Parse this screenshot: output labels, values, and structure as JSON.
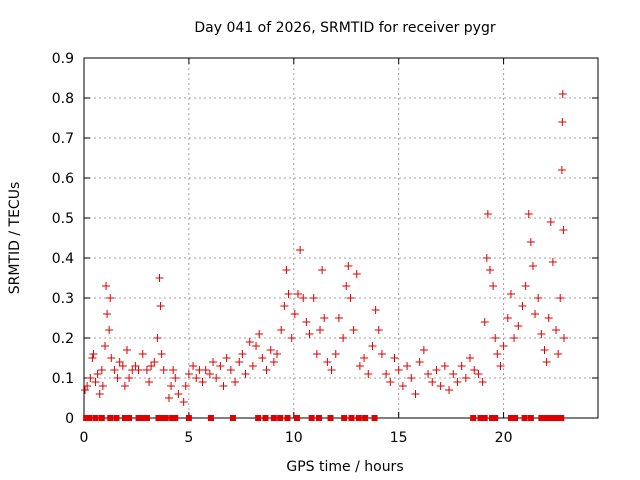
{
  "chart_data": {
    "type": "scatter",
    "title": "Day 041 of 2026, SRMTID for receiver pygr",
    "xlabel": "GPS time / hours",
    "ylabel": "SRMTID / TECUs",
    "xlim": [
      0,
      24.5
    ],
    "ylim": [
      0,
      0.9
    ],
    "xticks": [
      0,
      5,
      10,
      15,
      20
    ],
    "xtick_labels": [
      "0",
      "5",
      "10",
      "15",
      "20"
    ],
    "yticks": [
      0,
      0.1,
      0.2,
      0.3,
      0.4,
      0.5,
      0.6,
      0.7,
      0.8,
      0.9
    ],
    "ytick_labels": [
      "0",
      "0.1",
      "0.2",
      "0.3",
      "0.4",
      "0.5",
      "0.6",
      "0.7",
      "0.8",
      "0.9"
    ],
    "grid": true,
    "color": "#e00000",
    "marker": "plus",
    "series": [
      {
        "name": "SRMTID",
        "points": [
          [
            0.05,
            0.07
          ],
          [
            0.15,
            0.08
          ],
          [
            0.3,
            0.1
          ],
          [
            0.4,
            0.15
          ],
          [
            0.45,
            0.16
          ],
          [
            0.55,
            0.09
          ],
          [
            0.65,
            0.11
          ],
          [
            0.75,
            0.06
          ],
          [
            0.85,
            0.12
          ],
          [
            0.9,
            0.08
          ],
          [
            1.0,
            0.18
          ],
          [
            1.05,
            0.33
          ],
          [
            1.1,
            0.26
          ],
          [
            1.2,
            0.22
          ],
          [
            1.25,
            0.3
          ],
          [
            1.3,
            0.15
          ],
          [
            1.45,
            0.12
          ],
          [
            1.6,
            0.1
          ],
          [
            1.7,
            0.14
          ],
          [
            1.85,
            0.13
          ],
          [
            1.95,
            0.08
          ],
          [
            2.05,
            0.17
          ],
          [
            2.15,
            0.1
          ],
          [
            2.3,
            0.12
          ],
          [
            2.45,
            0.13
          ],
          [
            2.6,
            0.12
          ],
          [
            2.8,
            0.16
          ],
          [
            3.0,
            0.12
          ],
          [
            3.1,
            0.09
          ],
          [
            3.2,
            0.13
          ],
          [
            3.35,
            0.14
          ],
          [
            3.5,
            0.2
          ],
          [
            3.6,
            0.35
          ],
          [
            3.65,
            0.28
          ],
          [
            3.7,
            0.16
          ],
          [
            3.8,
            0.12
          ],
          [
            4.05,
            0.05
          ],
          [
            4.15,
            0.08
          ],
          [
            4.25,
            0.12
          ],
          [
            4.35,
            0.1
          ],
          [
            4.5,
            0.06
          ],
          [
            4.75,
            0.04
          ],
          [
            4.85,
            0.08
          ],
          [
            5.0,
            0.11
          ],
          [
            5.2,
            0.13
          ],
          [
            5.35,
            0.1
          ],
          [
            5.5,
            0.12
          ],
          [
            5.65,
            0.09
          ],
          [
            5.8,
            0.12
          ],
          [
            6.0,
            0.11
          ],
          [
            6.15,
            0.14
          ],
          [
            6.3,
            0.1
          ],
          [
            6.5,
            0.13
          ],
          [
            6.65,
            0.08
          ],
          [
            6.8,
            0.15
          ],
          [
            7.0,
            0.12
          ],
          [
            7.2,
            0.09
          ],
          [
            7.4,
            0.14
          ],
          [
            7.55,
            0.16
          ],
          [
            7.7,
            0.11
          ],
          [
            7.9,
            0.19
          ],
          [
            8.05,
            0.13
          ],
          [
            8.2,
            0.18
          ],
          [
            8.35,
            0.21
          ],
          [
            8.5,
            0.15
          ],
          [
            8.7,
            0.12
          ],
          [
            8.9,
            0.17
          ],
          [
            9.05,
            0.14
          ],
          [
            9.2,
            0.16
          ],
          [
            9.4,
            0.22
          ],
          [
            9.55,
            0.28
          ],
          [
            9.65,
            0.37
          ],
          [
            9.75,
            0.31
          ],
          [
            9.9,
            0.2
          ],
          [
            10.05,
            0.26
          ],
          [
            10.2,
            0.31
          ],
          [
            10.3,
            0.42
          ],
          [
            10.45,
            0.3
          ],
          [
            10.6,
            0.24
          ],
          [
            10.75,
            0.21
          ],
          [
            10.95,
            0.3
          ],
          [
            11.1,
            0.16
          ],
          [
            11.25,
            0.22
          ],
          [
            11.35,
            0.37
          ],
          [
            11.45,
            0.25
          ],
          [
            11.6,
            0.14
          ],
          [
            11.8,
            0.12
          ],
          [
            12.0,
            0.16
          ],
          [
            12.15,
            0.25
          ],
          [
            12.35,
            0.2
          ],
          [
            12.5,
            0.33
          ],
          [
            12.6,
            0.38
          ],
          [
            12.7,
            0.3
          ],
          [
            12.85,
            0.22
          ],
          [
            13.0,
            0.36
          ],
          [
            13.15,
            0.13
          ],
          [
            13.35,
            0.15
          ],
          [
            13.55,
            0.11
          ],
          [
            13.75,
            0.18
          ],
          [
            13.9,
            0.27
          ],
          [
            14.05,
            0.22
          ],
          [
            14.2,
            0.16
          ],
          [
            14.4,
            0.11
          ],
          [
            14.6,
            0.09
          ],
          [
            14.8,
            0.15
          ],
          [
            15.0,
            0.12
          ],
          [
            15.2,
            0.08
          ],
          [
            15.4,
            0.13
          ],
          [
            15.6,
            0.1
          ],
          [
            15.8,
            0.06
          ],
          [
            16.0,
            0.14
          ],
          [
            16.2,
            0.17
          ],
          [
            16.4,
            0.11
          ],
          [
            16.6,
            0.09
          ],
          [
            16.8,
            0.12
          ],
          [
            17.0,
            0.08
          ],
          [
            17.2,
            0.13
          ],
          [
            17.4,
            0.07
          ],
          [
            17.6,
            0.11
          ],
          [
            17.8,
            0.09
          ],
          [
            18.0,
            0.13
          ],
          [
            18.2,
            0.1
          ],
          [
            18.4,
            0.15
          ],
          [
            18.6,
            0.12
          ],
          [
            18.8,
            0.11
          ],
          [
            19.0,
            0.09
          ],
          [
            19.1,
            0.24
          ],
          [
            19.2,
            0.4
          ],
          [
            19.25,
            0.51
          ],
          [
            19.35,
            0.37
          ],
          [
            19.5,
            0.33
          ],
          [
            19.6,
            0.2
          ],
          [
            19.7,
            0.16
          ],
          [
            19.85,
            0.13
          ],
          [
            20.0,
            0.18
          ],
          [
            20.2,
            0.25
          ],
          [
            20.35,
            0.31
          ],
          [
            20.5,
            0.2
          ],
          [
            20.7,
            0.23
          ],
          [
            20.9,
            0.28
          ],
          [
            21.05,
            0.33
          ],
          [
            21.2,
            0.51
          ],
          [
            21.3,
            0.44
          ],
          [
            21.4,
            0.38
          ],
          [
            21.5,
            0.26
          ],
          [
            21.65,
            0.3
          ],
          [
            21.8,
            0.21
          ],
          [
            21.95,
            0.17
          ],
          [
            22.05,
            0.14
          ],
          [
            22.15,
            0.25
          ],
          [
            22.25,
            0.49
          ],
          [
            22.35,
            0.39
          ],
          [
            22.5,
            0.22
          ],
          [
            22.6,
            0.16
          ],
          [
            22.7,
            0.3
          ],
          [
            22.78,
            0.62
          ],
          [
            22.8,
            0.74
          ],
          [
            22.82,
            0.81
          ],
          [
            22.85,
            0.47
          ],
          [
            22.88,
            0.2
          ]
        ]
      }
    ],
    "zero_points_x": [
      0.1,
      0.25,
      0.55,
      0.85,
      1.25,
      1.55,
      1.95,
      2.15,
      2.6,
      2.75,
      3.0,
      3.55,
      3.75,
      3.9,
      4.2,
      4.35,
      5.0,
      6.05,
      7.1,
      8.3,
      8.65,
      9.05,
      9.35,
      9.7,
      10.15,
      10.85,
      11.2,
      11.75,
      12.4,
      12.75,
      13.1,
      13.4,
      13.85,
      18.55,
      18.9,
      19.1,
      19.45,
      19.6,
      20.35,
      20.55,
      21.0,
      21.3,
      21.8,
      22.05,
      22.2,
      22.45,
      22.6,
      22.75
    ]
  }
}
